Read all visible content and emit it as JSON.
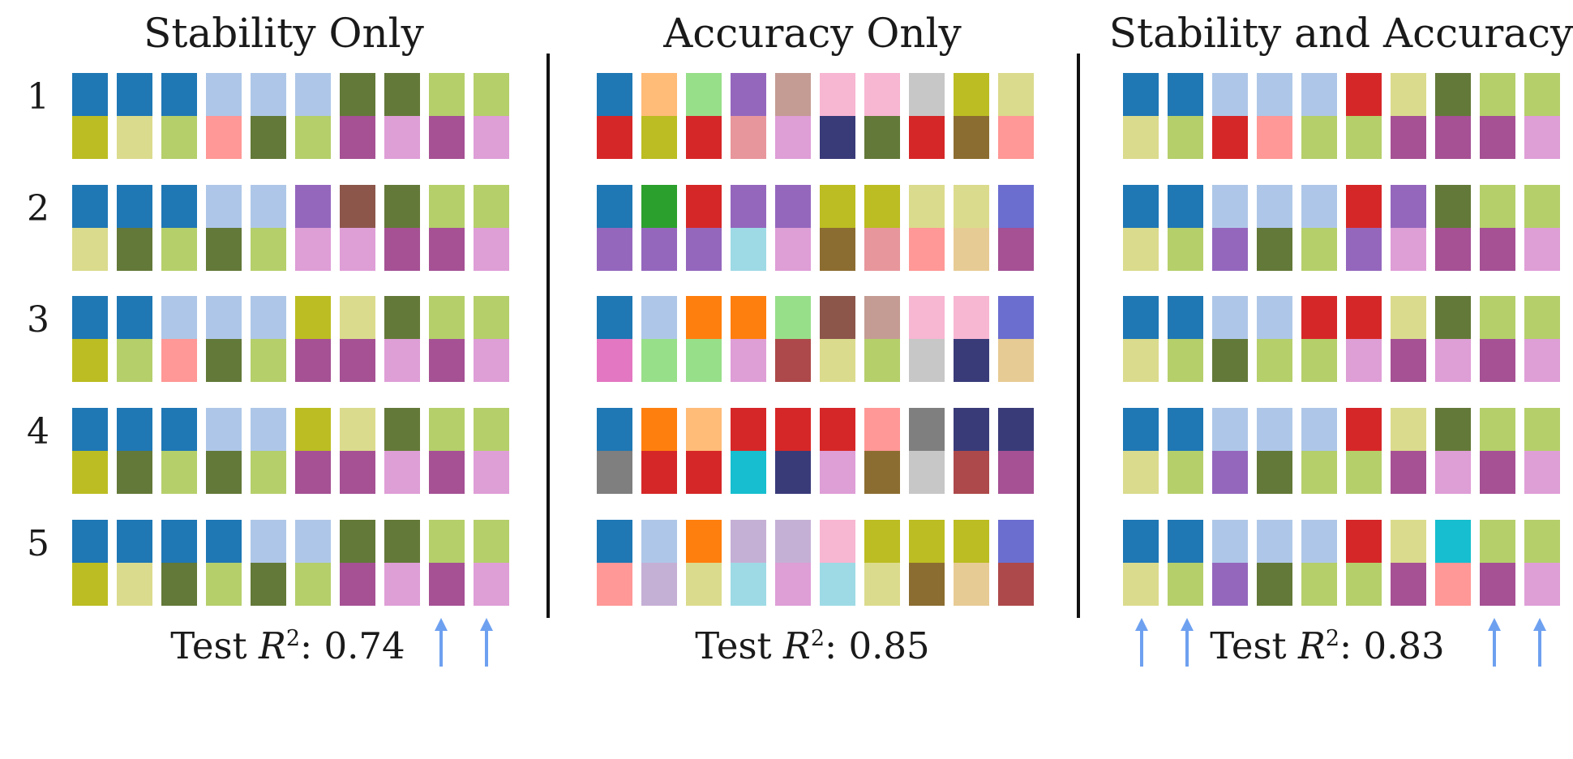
{
  "colors": {
    "A": "#1f77b4",
    "B": "#aec7e8",
    "C": "#637939",
    "D": "#b5cf6b",
    "E": "#bcbd22",
    "F": "#dbdb8d",
    "G": "#a55194",
    "H": "#de9ed6",
    "I": "#ff9896",
    "J": "#d62728",
    "K": "#9467bd",
    "L": "#8c564b",
    "M": "#ffbb78",
    "N": "#98df8a",
    "O": "#c49c94",
    "P": "#f7b6d2",
    "Q": "#c7c7c7",
    "R": "#e7969c",
    "S": "#393b79",
    "T": "#8c6d31",
    "U": "#2ca02c",
    "V": "#6b6ecf",
    "W": "#9edae5",
    "X": "#e7cb94",
    "Y": "#ff7f0e",
    "Z": "#ad494a",
    "a": "#7f7f7f",
    "b": "#17becf",
    "c": "#e377c2",
    "d": "#c5b0d5",
    "arrow": "#6ea0f0"
  },
  "row_labels": [
    "1",
    "2",
    "3",
    "4",
    "5"
  ],
  "panels": [
    {
      "title": "Stability Only",
      "footer_value": "0.74",
      "rows": [
        [
          "AAABBBCCDD",
          "EFDICDGHGH"
        ],
        [
          "AAABBKLCDD",
          "FCDCDHHGGH"
        ],
        [
          "AABBBEFCDD",
          "EDICDGGHGH"
        ],
        [
          "AAABBEFCDD",
          "ECDCDGGHGH"
        ],
        [
          "AAAABBCCDD",
          "EFCDCDGHGH"
        ]
      ]
    },
    {
      "title": "Accuracy Only",
      "footer_value": "0.85",
      "rows": [
        [
          "AMNKOPPQEF",
          "JEJRHSCJTI"
        ],
        [
          "AUJKKEEFFV",
          "KKKWHTRIXG"
        ],
        [
          "ABYYNLOPPV",
          "cNNHZFDQSX"
        ],
        [
          "AYMJJJIaSS",
          "aJJbSHTQZG"
        ],
        [
          "ABYddPEEEV",
          "IdFWHWFTXZ"
        ]
      ]
    },
    {
      "title": "Stability and Accuracy",
      "footer_value": "0.83",
      "rows": [
        [
          "AABBBJFCDD",
          "FDJIDDGGGH"
        ],
        [
          "AABBBJKCDD",
          "FDKCDKHGGH"
        ],
        [
          "AABBJJFCDD",
          "FDCDDHGHGH"
        ],
        [
          "AABBBJFCDD",
          "FDKCDDGHGH"
        ],
        [
          "AABBBJFbDD",
          "FDKCDDGIGH"
        ]
      ]
    }
  ],
  "footer_prefix": "Test ",
  "footer_var": "R",
  "footer_sup": "2",
  "footer_colon": ": "
}
